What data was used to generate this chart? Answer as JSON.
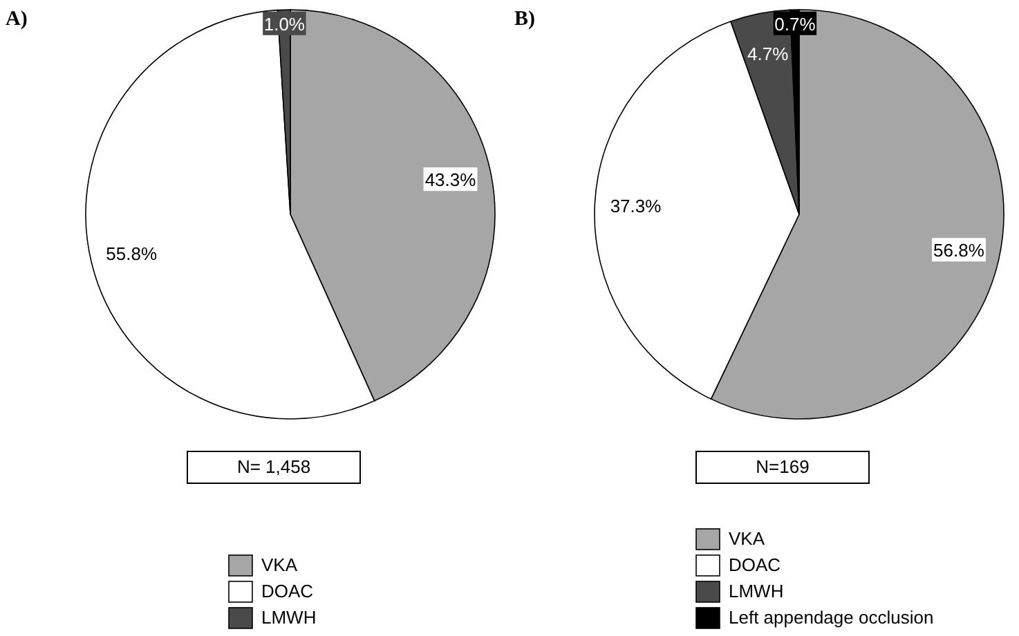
{
  "chart_data": [
    {
      "type": "pie",
      "title": "A)",
      "categories": [
        "VKA",
        "DOAC",
        "LMWH"
      ],
      "values": [
        43.3,
        55.8,
        1.0
      ],
      "value_labels": [
        "43.3%",
        "55.8%",
        "1.0%"
      ],
      "colors": [
        "#a6a6a6",
        "#ffffff",
        "#4a4a4a"
      ],
      "legend": "bottom",
      "annotations": [
        "N= 1,458"
      ]
    },
    {
      "type": "pie",
      "title": "B)",
      "categories": [
        "VKA",
        "DOAC",
        "LMWH",
        "Left appendage occlusion"
      ],
      "values": [
        56.8,
        37.3,
        4.7,
        0.7
      ],
      "value_labels": [
        "56.8%",
        "37.3%",
        "4.7%",
        "0.7%"
      ],
      "colors": [
        "#a6a6a6",
        "#ffffff",
        "#4a4a4a",
        "#000000"
      ],
      "legend": "bottom",
      "annotations": [
        "N=169"
      ]
    }
  ]
}
